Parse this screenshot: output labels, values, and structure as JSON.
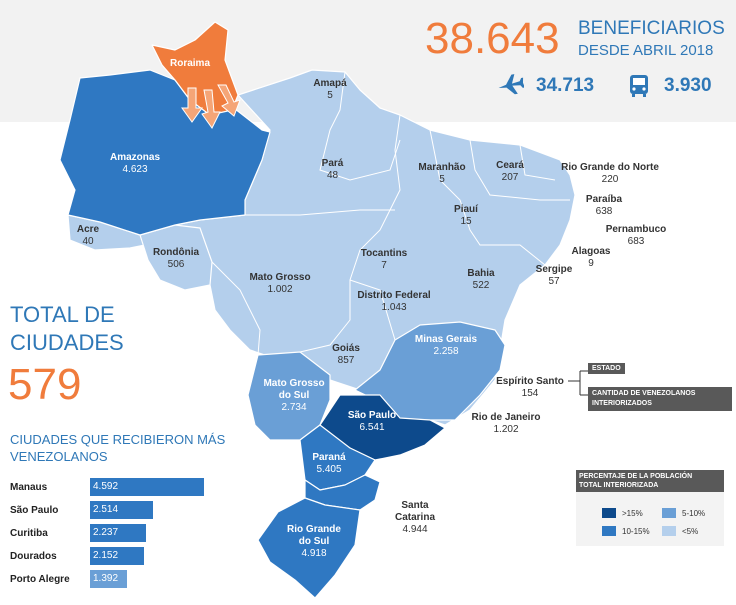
{
  "header": {
    "total": "38.643",
    "title_line1": "BENEFICIARIOS",
    "title_line2": "DESDE ABRIL 2018",
    "plane_count": "34.713",
    "bus_count": "3.930"
  },
  "cities_panel": {
    "total_label_line1": "TOTAL DE",
    "total_label_line2": "CIUDADES",
    "total_value": "579",
    "list_title_line1": "CIUDADES QUE RECIBIERON MÁS",
    "list_title_line2": "VENEZOLANOS",
    "cities": [
      {
        "name": "Manaus",
        "value": "4.592",
        "number": 4592
      },
      {
        "name": "São Paulo",
        "value": "2.514",
        "number": 2514
      },
      {
        "name": "Curitiba",
        "value": "2.237",
        "number": 2237
      },
      {
        "name": "Dourados",
        "value": "2.152",
        "number": 2152
      },
      {
        "name": "Porto Alegre",
        "value": "1.392",
        "number": 1392
      }
    ]
  },
  "states": {
    "roraima": {
      "name": "Roraima"
    },
    "amapa": {
      "name": "Amapá",
      "value": "5"
    },
    "amazonas": {
      "name": "Amazonas",
      "value": "4.623"
    },
    "para": {
      "name": "Pará",
      "value": "48"
    },
    "maranhao": {
      "name": "Maranhão",
      "value": "5"
    },
    "ceara": {
      "name": "Ceará",
      "value": "207"
    },
    "rgn": {
      "name": "Rio Grande do Norte",
      "value": "220"
    },
    "paraiba": {
      "name": "Paraíba",
      "value": "638"
    },
    "pernambuco": {
      "name": "Pernambuco",
      "value": "683"
    },
    "alagoas": {
      "name": "Alagoas",
      "value": "9"
    },
    "sergipe": {
      "name": "Sergipe",
      "value": "57"
    },
    "piaui": {
      "name": "Piauí",
      "value": "15"
    },
    "acre": {
      "name": "Acre",
      "value": "40"
    },
    "rondonia": {
      "name": "Rondônia",
      "value": "506"
    },
    "tocantins": {
      "name": "Tocantins",
      "value": "7"
    },
    "bahia": {
      "name": "Bahia",
      "value": "522"
    },
    "mato_grosso": {
      "name": "Mato Grosso",
      "value": "1.002"
    },
    "df": {
      "name": "Distrito Federal",
      "value": "1.043"
    },
    "goias": {
      "name": "Goiás",
      "value": "857"
    },
    "minas": {
      "name": "Minas Gerais",
      "value": "2.258"
    },
    "ms": {
      "name_line1": "Mato Grosso",
      "name_line2": "do Sul",
      "value": "2.734"
    },
    "sao_paulo": {
      "name": "São Paulo",
      "value": "6.541"
    },
    "espirito_santo": {
      "name": "Espírito Santo",
      "value": "154"
    },
    "rio": {
      "name": "Rio de Janeiro",
      "value": "1.202"
    },
    "parana": {
      "name": "Paraná",
      "value": "5.405"
    },
    "sc": {
      "name_line1": "Santa",
      "name_line2": "Catarina",
      "value": "4.944"
    },
    "rs": {
      "name_line1": "Rio Grande",
      "name_line2": "do Sul",
      "value": "4.918"
    }
  },
  "key": {
    "state_tag": "ESTADO",
    "count_tag_line1": "CANTIDAD DE VENEZOLANOS",
    "count_tag_line2": "INTERIORIZADOS"
  },
  "legend": {
    "title_line1": "PERCENTAJE DE LA POBLACIÓN",
    "title_line2": "TOTAL INTERIORIZADA",
    "items": [
      {
        "label": ">15%",
        "color": "#0d4a8c"
      },
      {
        "label": "5-10%",
        "color": "#6a9fd6"
      },
      {
        "label": "10-15%",
        "color": "#2f78c2"
      },
      {
        "label": "<5%",
        "color": "#b4cfec"
      }
    ]
  },
  "colors": {
    "accent_orange": "#f07c3c",
    "title_blue": "#2f78b7",
    "dark": "#0d4a8c",
    "mid_dark": "#2f78c2",
    "mid": "#6a9fd6",
    "light": "#b4cfec",
    "bar": "#2f78c2"
  },
  "icons": {
    "plane": "airplane-icon",
    "bus": "bus-icon"
  }
}
